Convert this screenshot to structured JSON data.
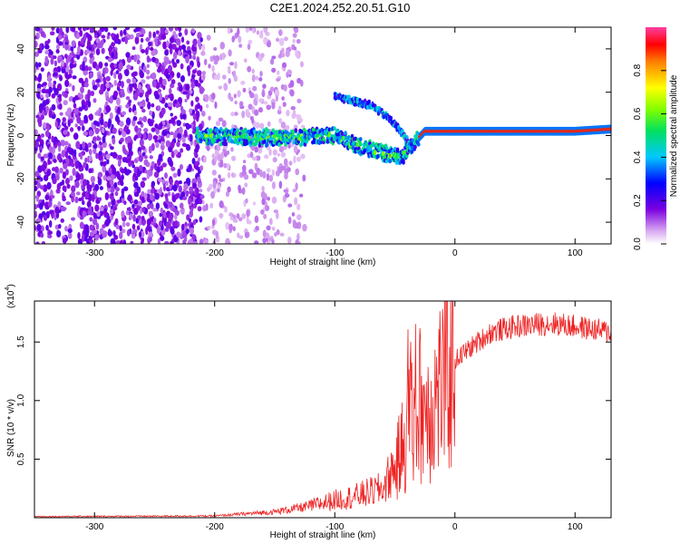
{
  "title": "C2E1.2024.252.20.51.G10",
  "chart_data": [
    {
      "type": "heatmap",
      "xlabel": "Height of straight line (km)",
      "ylabel": "Frequency (Hz)",
      "xlim": [
        -350,
        130
      ],
      "ylim": [
        -50,
        50
      ],
      "x_ticks": [
        -300,
        -200,
        -100,
        0,
        100
      ],
      "y_ticks": [
        -40,
        -20,
        0,
        20,
        40
      ],
      "x_tick_labels": [
        "-300",
        "-200",
        "-100",
        "0",
        "100"
      ],
      "y_tick_labels": [
        "-40",
        "-20",
        "0",
        "20",
        "40"
      ],
      "colorbar": {
        "label": "Normalized spectral amplitude",
        "ticks": [
          0.0,
          0.2,
          0.4,
          0.6,
          0.8
        ],
        "tick_labels": [
          "0.0",
          "0.2",
          "0.4",
          "0.6",
          "0.8"
        ],
        "range": [
          0,
          1
        ]
      },
      "features": {
        "noise_region_x": [
          -350,
          -125
        ],
        "dense_noise_x": [
          -350,
          -210
        ],
        "main_line_points": [
          [
            -210,
            0
          ],
          [
            -150,
            -1
          ],
          [
            -100,
            0
          ],
          [
            -80,
            -5
          ],
          [
            -60,
            -8
          ],
          [
            -45,
            -10
          ],
          [
            -35,
            -4
          ],
          [
            -25,
            2
          ],
          [
            0,
            2
          ],
          [
            100,
            2
          ],
          [
            130,
            3
          ]
        ],
        "upper_branch_points": [
          [
            -100,
            18
          ],
          [
            -70,
            14
          ],
          [
            -55,
            8
          ],
          [
            -45,
            2
          ],
          [
            -35,
            -6
          ]
        ]
      }
    },
    {
      "type": "line",
      "xlabel": "Height of straight line (km)",
      "ylabel": "SNR (10 * v/v)",
      "y_multiplier_label": "(x10",
      "y_multiplier_exp": "4",
      "xlim": [
        -350,
        130
      ],
      "ylim": [
        0,
        18500
      ],
      "x_ticks": [
        -300,
        -200,
        -100,
        0,
        100
      ],
      "y_ticks": [
        5000,
        10000,
        15000
      ],
      "x_tick_labels": [
        "-300",
        "-200",
        "-100",
        "0",
        "100"
      ],
      "y_tick_labels": [
        "0.5",
        "1.0",
        "1.5"
      ],
      "color": "#ee2222",
      "envelope": [
        [
          -350,
          100
        ],
        [
          -200,
          150
        ],
        [
          -150,
          500
        ],
        [
          -120,
          1000
        ],
        [
          -100,
          1500
        ],
        [
          -80,
          1900
        ],
        [
          -60,
          2500
        ],
        [
          -50,
          4500
        ],
        [
          -40,
          8000
        ],
        [
          -34,
          11000
        ],
        [
          -20,
          10500
        ],
        [
          -10,
          13000
        ],
        [
          0,
          14000
        ],
        [
          15,
          15300
        ],
        [
          30,
          16500
        ],
        [
          50,
          17000
        ],
        [
          80,
          17300
        ],
        [
          100,
          17000
        ],
        [
          130,
          16500
        ]
      ]
    }
  ]
}
